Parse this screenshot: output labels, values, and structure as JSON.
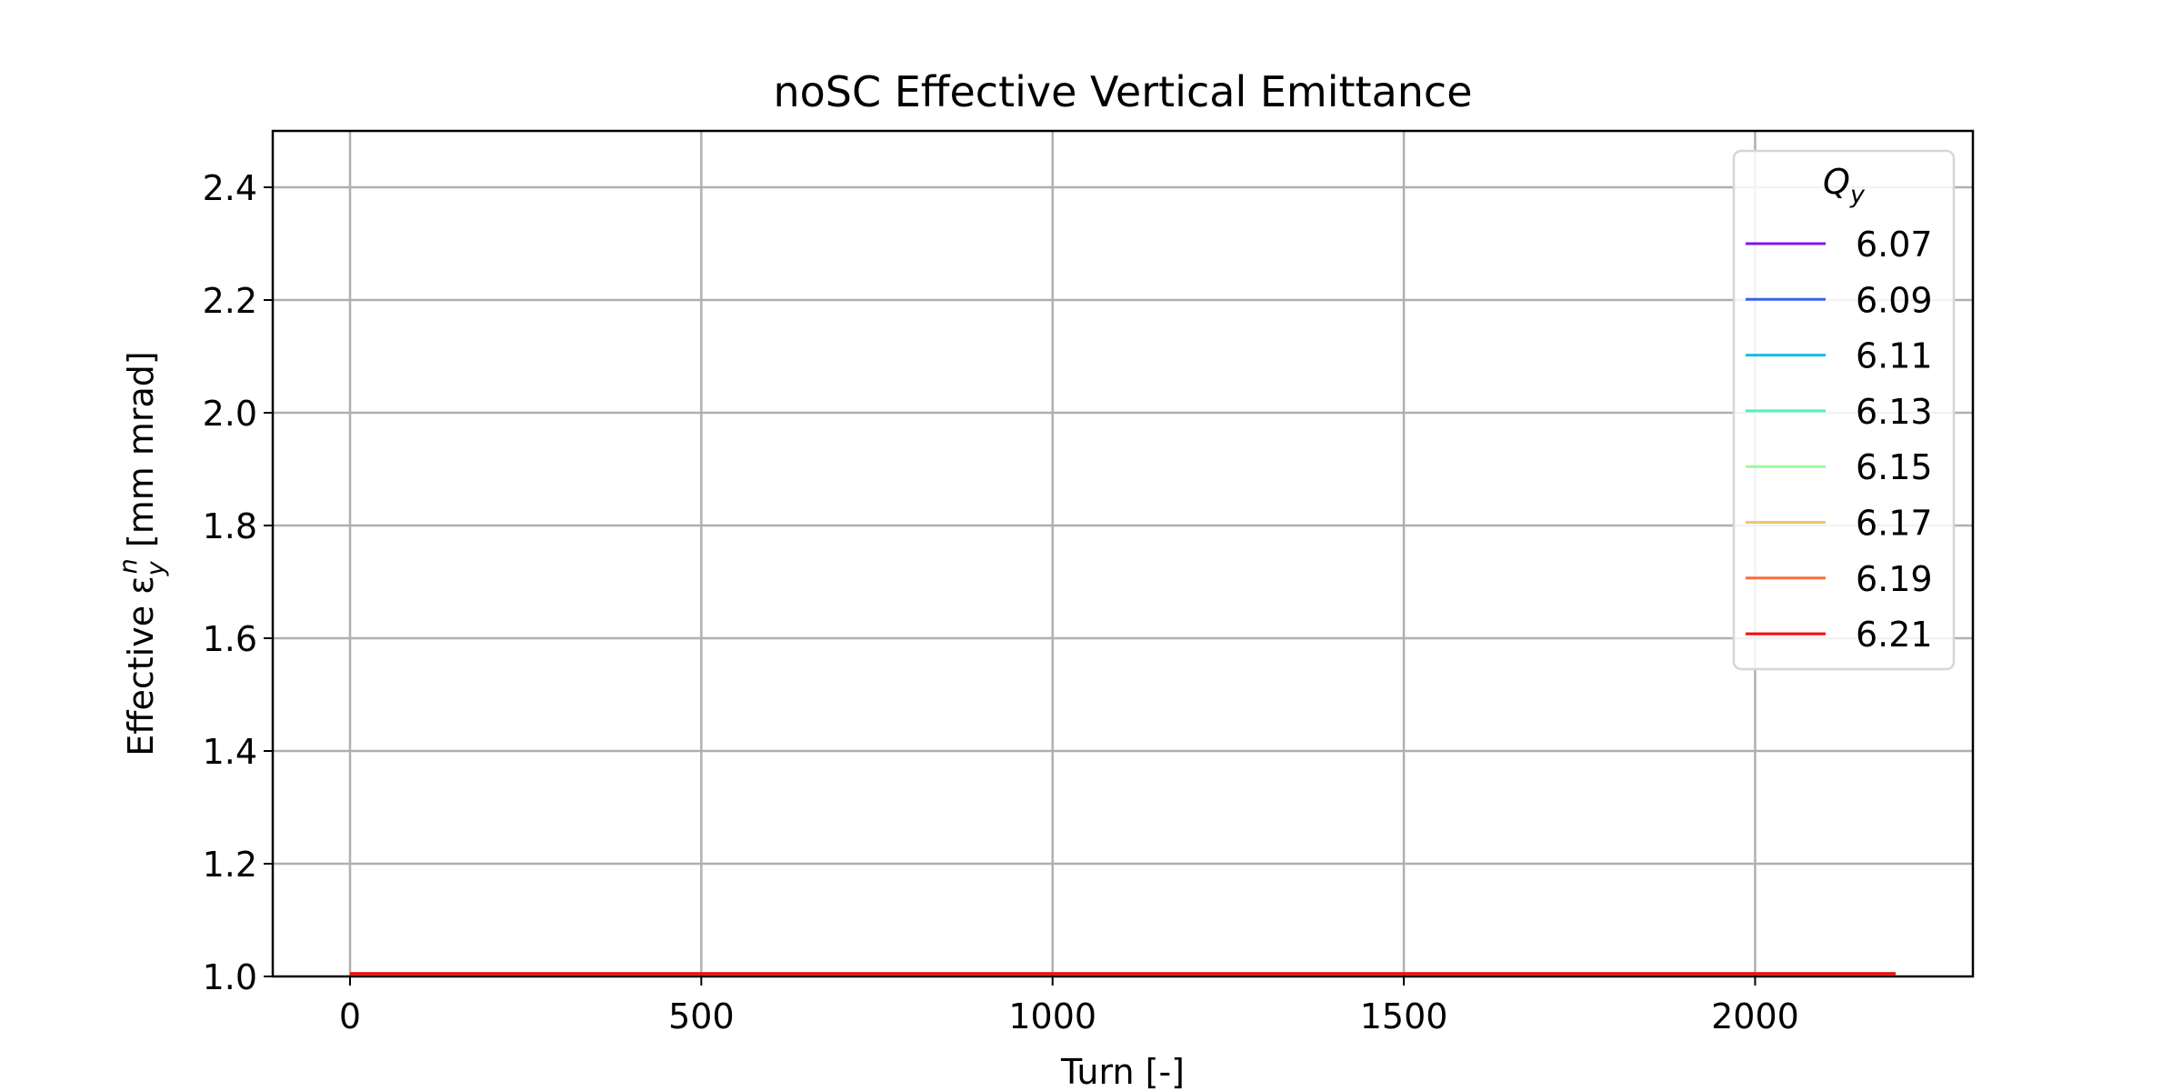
{
  "chart_data": {
    "type": "line",
    "title": "noSC Effective Vertical Emittance",
    "xlabel": "Turn [-]",
    "ylabel": {
      "prefix": "Effective ε",
      "sub": "y",
      "sup": "n",
      "suffix": " [mm mrad]"
    },
    "xlim": [
      -110,
      2310
    ],
    "ylim": [
      1.0,
      2.5
    ],
    "xticks": [
      0,
      500,
      1000,
      1500,
      2000
    ],
    "yticks": [
      1.0,
      1.2,
      1.4,
      1.6,
      1.8,
      2.0,
      2.2,
      2.4
    ],
    "xtick_labels": [
      "0",
      "500",
      "1000",
      "1500",
      "2000"
    ],
    "ytick_labels": [
      "1.0",
      "1.2",
      "1.4",
      "1.6",
      "1.8",
      "2.0",
      "2.2",
      "2.4"
    ],
    "grid": true,
    "legend": {
      "title": {
        "base": "Q",
        "sub": "y"
      },
      "placement": "top-right"
    },
    "x": [
      0,
      2200
    ],
    "series": [
      {
        "name": "6.07",
        "color": "#7f17e8",
        "values": [
          1.005,
          1.005
        ]
      },
      {
        "name": "6.09",
        "color": "#3863ed",
        "values": [
          1.005,
          1.005
        ]
      },
      {
        "name": "6.11",
        "color": "#14bce2",
        "values": [
          1.005,
          1.005
        ]
      },
      {
        "name": "6.13",
        "color": "#52f1c6",
        "values": [
          1.005,
          1.005
        ]
      },
      {
        "name": "6.15",
        "color": "#9ef99a",
        "values": [
          1.005,
          1.005
        ]
      },
      {
        "name": "6.17",
        "color": "#f2c46c",
        "values": [
          1.005,
          1.005
        ]
      },
      {
        "name": "6.19",
        "color": "#ff6a3c",
        "values": [
          1.005,
          1.005
        ]
      },
      {
        "name": "6.21",
        "color": "#ff0000",
        "values": [
          1.005,
          1.005
        ]
      }
    ]
  }
}
